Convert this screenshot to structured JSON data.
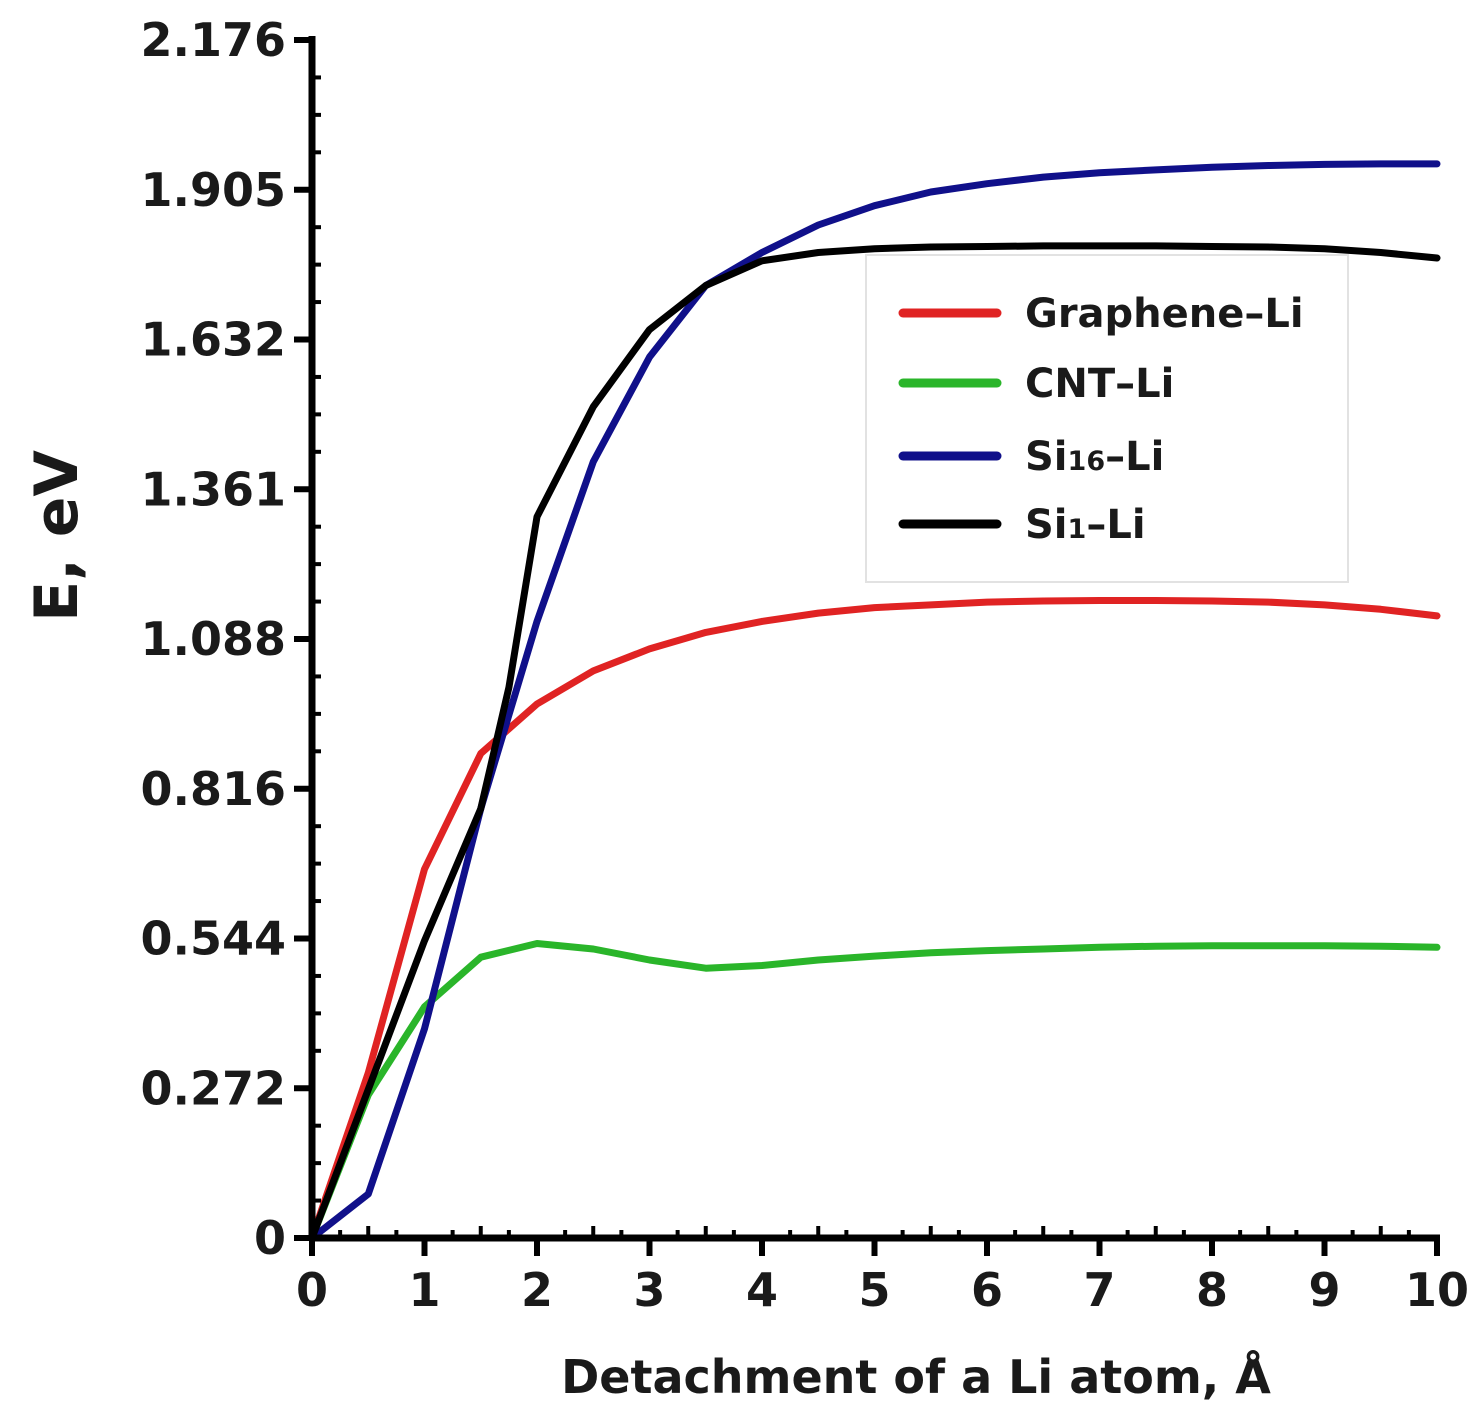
{
  "chart_data": {
    "type": "line",
    "xlabel": "Detachment of a Li atom, Å",
    "ylabel": "E, eV",
    "xlim": [
      0,
      10
    ],
    "ylim": [
      0,
      2.176
    ],
    "xticks": [
      "0",
      "1",
      "2",
      "3",
      "4",
      "5",
      "6",
      "7",
      "8",
      "9",
      "10"
    ],
    "yticks": [
      "0",
      "0.272",
      "0.544",
      "0.816",
      "1.088",
      "1.361",
      "1.632",
      "1.905",
      "2.176"
    ],
    "legend_position": "upper-right",
    "grid": false,
    "series": [
      {
        "name": "Graphene–Li",
        "legend": {
          "main": "Graphene–Li",
          "sub": "",
          "tail": ""
        },
        "color": "#e02323",
        "x": [
          0,
          0.5,
          1,
          1.5,
          2,
          2.5,
          3,
          3.5,
          4,
          4.5,
          5,
          5.5,
          6,
          6.5,
          7,
          7.5,
          8,
          8.5,
          9,
          9.5,
          10
        ],
        "y": [
          0,
          0.3,
          0.67,
          0.88,
          0.97,
          1.03,
          1.07,
          1.1,
          1.12,
          1.135,
          1.145,
          1.15,
          1.155,
          1.157,
          1.158,
          1.158,
          1.157,
          1.155,
          1.15,
          1.142,
          1.13
        ]
      },
      {
        "name": "CNT–Li",
        "legend": {
          "main": "CNT–Li",
          "sub": "",
          "tail": ""
        },
        "color": "#2ab52a",
        "x": [
          0,
          0.5,
          1,
          1.5,
          2,
          2.5,
          3,
          3.5,
          4,
          4.5,
          5,
          5.5,
          6,
          6.5,
          7,
          7.5,
          8,
          8.5,
          9,
          9.5,
          10
        ],
        "y": [
          0,
          0.26,
          0.42,
          0.51,
          0.535,
          0.525,
          0.505,
          0.49,
          0.495,
          0.505,
          0.512,
          0.518,
          0.522,
          0.525,
          0.528,
          0.53,
          0.531,
          0.531,
          0.531,
          0.53,
          0.528
        ]
      },
      {
        "name": "Si16–Li",
        "legend": {
          "main": "Si",
          "sub": "16",
          "tail": "–Li"
        },
        "color": "#10108a",
        "x": [
          0,
          0.5,
          1,
          1.5,
          2,
          2.5,
          3,
          3.5,
          4,
          4.5,
          5,
          5.5,
          6,
          6.5,
          7,
          7.5,
          8,
          8.5,
          9,
          9.5,
          10
        ],
        "y": [
          0,
          0.08,
          0.38,
          0.78,
          1.12,
          1.41,
          1.6,
          1.73,
          1.79,
          1.84,
          1.875,
          1.9,
          1.915,
          1.927,
          1.935,
          1.94,
          1.945,
          1.948,
          1.95,
          1.951,
          1.951
        ]
      },
      {
        "name": "Si1–Li",
        "legend": {
          "main": "Si",
          "sub": "1",
          "tail": "–Li"
        },
        "color": "#000000",
        "x": [
          0,
          0.5,
          1,
          1.5,
          1.75,
          2,
          2.5,
          3,
          3.5,
          4,
          4.5,
          5,
          5.5,
          6,
          6.5,
          7,
          7.5,
          8,
          8.5,
          9,
          9.5,
          10
        ],
        "y": [
          0,
          0.27,
          0.54,
          0.78,
          1.0,
          1.31,
          1.51,
          1.65,
          1.73,
          1.775,
          1.79,
          1.797,
          1.8,
          1.801,
          1.802,
          1.802,
          1.802,
          1.801,
          1.8,
          1.797,
          1.79,
          1.78
        ]
      }
    ]
  }
}
